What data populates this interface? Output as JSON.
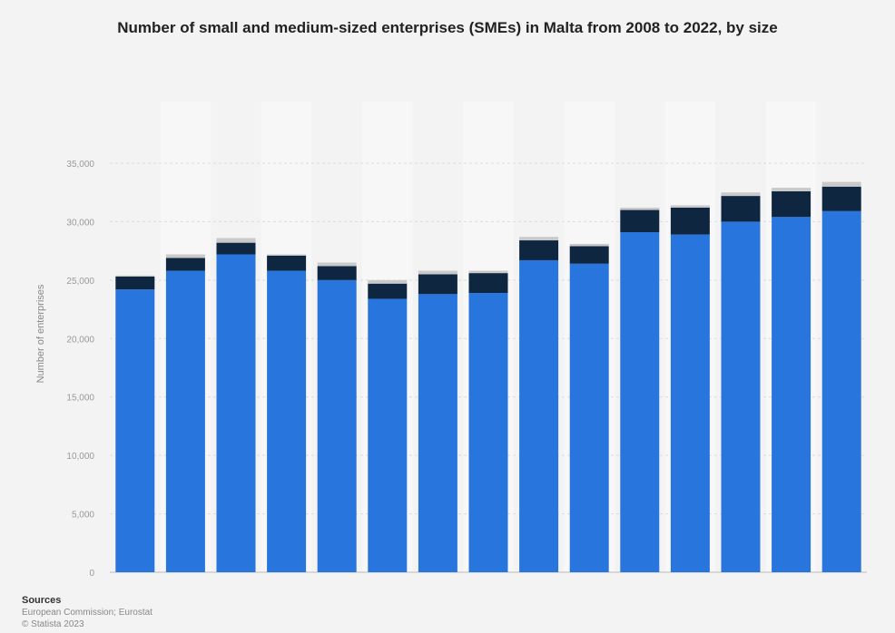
{
  "chart_data": {
    "type": "bar",
    "stacked": true,
    "title": "Number of small and medium-sized enterprises (SMEs) in Malta from 2008 to 2022, by size",
    "xlabel": "",
    "ylabel": "Number of enterprises",
    "ylim": [
      0,
      35000
    ],
    "yticks": [
      "0",
      "5,000",
      "10,000",
      "15,000",
      "20,000",
      "25,000",
      "30,000",
      "35,000"
    ],
    "grid": true,
    "series": [
      {
        "color": "#2876dd",
        "values": [
          24200,
          25800,
          27200,
          25800,
          25000,
          23400,
          23800,
          23900,
          26700,
          26400,
          29100,
          28900,
          30000,
          30400,
          30900
        ]
      },
      {
        "color": "#0f2640",
        "values": [
          1100,
          1100,
          1000,
          1300,
          1200,
          1300,
          1700,
          1700,
          1700,
          1500,
          1900,
          2300,
          2200,
          2200,
          2100
        ]
      },
      {
        "color": "#c9c9c9",
        "values": [
          100,
          300,
          400,
          100,
          300,
          300,
          300,
          200,
          300,
          200,
          200,
          200,
          300,
          300,
          400
        ]
      }
    ]
  },
  "source": {
    "heading": "Sources",
    "line1": "European Commission; Eurostat",
    "line2": "© Statista 2023"
  }
}
